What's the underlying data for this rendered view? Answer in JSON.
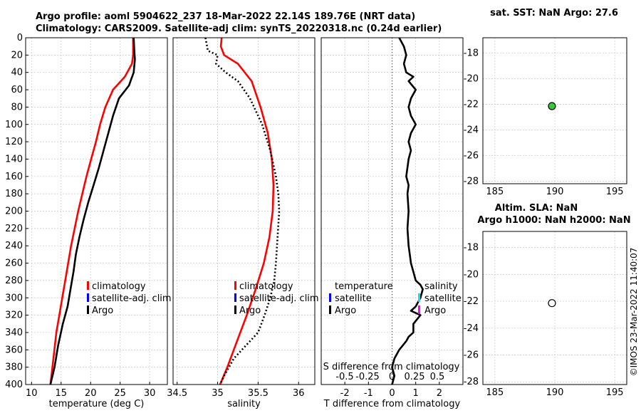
{
  "title_line1": "Argo profile: aoml 5904622_237 18-Mar-2022 22.14S 189.76E (NRT data)",
  "title_line2": "Climatology: CARS2009. Satellite-adj clim: synTS_20220318.nc (0.24d earlier)",
  "watermark": "©IMOS 23-Mar-2022 11:40:07",
  "colors": {
    "climatology": "#ff0000",
    "satellite": "#0000ff",
    "argo": "#000000",
    "sat_salinity": "#00e5ff",
    "argo_salinity": "#ff00ff",
    "marker_green": "#33cc33",
    "grid": "#c8c8c8"
  },
  "chart_data": [
    {
      "id": "temperature",
      "type": "line",
      "xlabel": "temperature (deg C)",
      "ylabel": "",
      "xlim": [
        9,
        33
      ],
      "ylim": [
        0,
        400
      ],
      "xticks": [
        10,
        15,
        20,
        25,
        30
      ],
      "yticks": [
        0,
        20,
        40,
        60,
        80,
        100,
        120,
        140,
        160,
        180,
        200,
        220,
        240,
        260,
        280,
        300,
        320,
        340,
        360,
        380,
        400
      ],
      "legend": [
        "climatology",
        "satellite-adj. clim",
        "Argo"
      ],
      "series": [
        {
          "name": "climatology",
          "color": "#ff0000",
          "dotted": false,
          "x": [
            27.2,
            27.2,
            27.0,
            25.8,
            23.8,
            22.5,
            21.6,
            20.9,
            20.1,
            19.3,
            18.6,
            17.9,
            17.3,
            16.7,
            16.2,
            15.7,
            15.2,
            14.7,
            14.2,
            13.7,
            13.2
          ],
          "y": [
            0,
            20,
            30,
            45,
            60,
            80,
            100,
            120,
            140,
            160,
            180,
            200,
            220,
            240,
            260,
            280,
            300,
            320,
            340,
            370,
            400
          ]
        },
        {
          "name": "Argo",
          "color": "#000000",
          "dotted": false,
          "x": [
            27.3,
            27.4,
            27.5,
            27.3,
            26.5,
            24.8,
            23.8,
            23.0,
            22.2,
            21.4,
            20.5,
            19.6,
            18.8,
            18.1,
            17.5,
            17.1,
            16.6,
            16.1,
            15.3,
            14.5,
            13.9,
            13.2
          ],
          "y": [
            0,
            15,
            25,
            40,
            55,
            70,
            90,
            110,
            130,
            150,
            170,
            190,
            210,
            230,
            250,
            270,
            290,
            310,
            330,
            355,
            380,
            400
          ]
        }
      ]
    },
    {
      "id": "salinity",
      "type": "line",
      "xlabel": "salinity",
      "ylabel": "",
      "xlim": [
        34.45,
        36.2
      ],
      "ylim": [
        0,
        400
      ],
      "xticks": [
        34.5,
        35,
        35.5,
        36
      ],
      "xticklabels": [
        "34.5",
        "35",
        "35.5",
        "36"
      ],
      "legend": [
        "climatology",
        "satellite-adj. clim",
        "Argo"
      ],
      "series": [
        {
          "name": "climatology",
          "color": "#ff0000",
          "dotted": false,
          "x": [
            35.05,
            35.04,
            35.08,
            35.25,
            35.42,
            35.53,
            35.62,
            35.67,
            35.69,
            35.68,
            35.64,
            35.57,
            35.47,
            35.36,
            35.24,
            35.12,
            35.03
          ],
          "y": [
            0,
            10,
            20,
            30,
            50,
            80,
            110,
            140,
            170,
            200,
            230,
            260,
            290,
            320,
            350,
            380,
            400
          ]
        },
        {
          "name": "Argo",
          "color": "#000000",
          "dotted": true,
          "x": [
            34.85,
            34.88,
            35.0,
            34.98,
            35.1,
            35.25,
            35.4,
            35.55,
            35.65,
            35.72,
            35.75,
            35.76,
            35.74,
            35.72,
            35.7,
            35.65,
            35.58,
            35.5,
            35.35,
            35.2,
            35.08,
            35.03
          ],
          "y": [
            0,
            15,
            20,
            30,
            40,
            50,
            70,
            100,
            130,
            160,
            180,
            200,
            230,
            260,
            280,
            300,
            320,
            340,
            355,
            370,
            390,
            400
          ]
        }
      ]
    },
    {
      "id": "difference",
      "type": "line",
      "xlabel": "T difference from climatology",
      "ylabel": "",
      "xlim": [
        -3,
        3
      ],
      "ylim": [
        0,
        400
      ],
      "xticks": [
        -2,
        -1,
        0,
        1,
        2
      ],
      "xticklabels": [
        "-2",
        "-1",
        "0",
        "1",
        "2"
      ],
      "secondary_label": "S difference from climatology",
      "secondary_ticks": [
        "-0.5",
        "-0.25",
        "0",
        "0.25",
        "0.5"
      ],
      "legend_left_title": "temperature",
      "legend_left": [
        "satellite",
        "Argo"
      ],
      "legend_right_title": "salinity",
      "legend_right": [
        "satellite",
        "Argo"
      ],
      "series": [
        {
          "name": "Argo T difference",
          "color": "#000000",
          "dotted": false,
          "x": [
            0.3,
            0.5,
            0.6,
            0.5,
            0.6,
            0.9,
            0.7,
            1.0,
            0.8,
            0.7,
            0.8,
            1.0,
            0.8,
            0.7,
            0.8,
            0.7,
            0.6,
            0.7,
            0.65,
            0.7,
            0.65,
            0.7,
            0.75,
            0.8,
            0.9,
            1.0,
            1.2,
            1.3,
            1.2,
            1.0,
            0.8,
            1.2,
            0.9,
            0.9,
            0.7,
            0.6,
            0.3,
            0.1,
            0.0,
            0.1,
            0.0
          ],
          "y": [
            0,
            10,
            20,
            30,
            40,
            45,
            50,
            60,
            70,
            80,
            90,
            100,
            110,
            120,
            130,
            140,
            160,
            170,
            180,
            200,
            220,
            240,
            250,
            260,
            270,
            280,
            285,
            290,
            300,
            310,
            315,
            320,
            330,
            340,
            345,
            350,
            360,
            370,
            380,
            390,
            400
          ]
        }
      ]
    },
    {
      "id": "map_sst",
      "type": "scatter",
      "title": "sat. SST: NaN Argo: 27.6",
      "xlim": [
        184,
        196
      ],
      "ylim": [
        -28.2,
        -16.8
      ],
      "xticks": [
        185,
        190,
        195
      ],
      "yticks": [
        -18,
        -20,
        -22,
        -24,
        -26,
        -28
      ],
      "points": [
        {
          "x": 189.76,
          "y": -22.14,
          "fill": "#33cc33"
        }
      ]
    },
    {
      "id": "map_sla",
      "type": "scatter",
      "title_line1": "Altim. SLA: NaN",
      "title_line2": "Argo h1000: NaN h2000: NaN",
      "xlim": [
        184,
        196
      ],
      "ylim": [
        -28.2,
        -16.8
      ],
      "xticks": [
        185,
        190,
        195
      ],
      "yticks": [
        -18,
        -20,
        -22,
        -24,
        -26,
        -28
      ],
      "points": [
        {
          "x": 189.76,
          "y": -22.14,
          "fill": "#ffffff"
        }
      ]
    }
  ]
}
